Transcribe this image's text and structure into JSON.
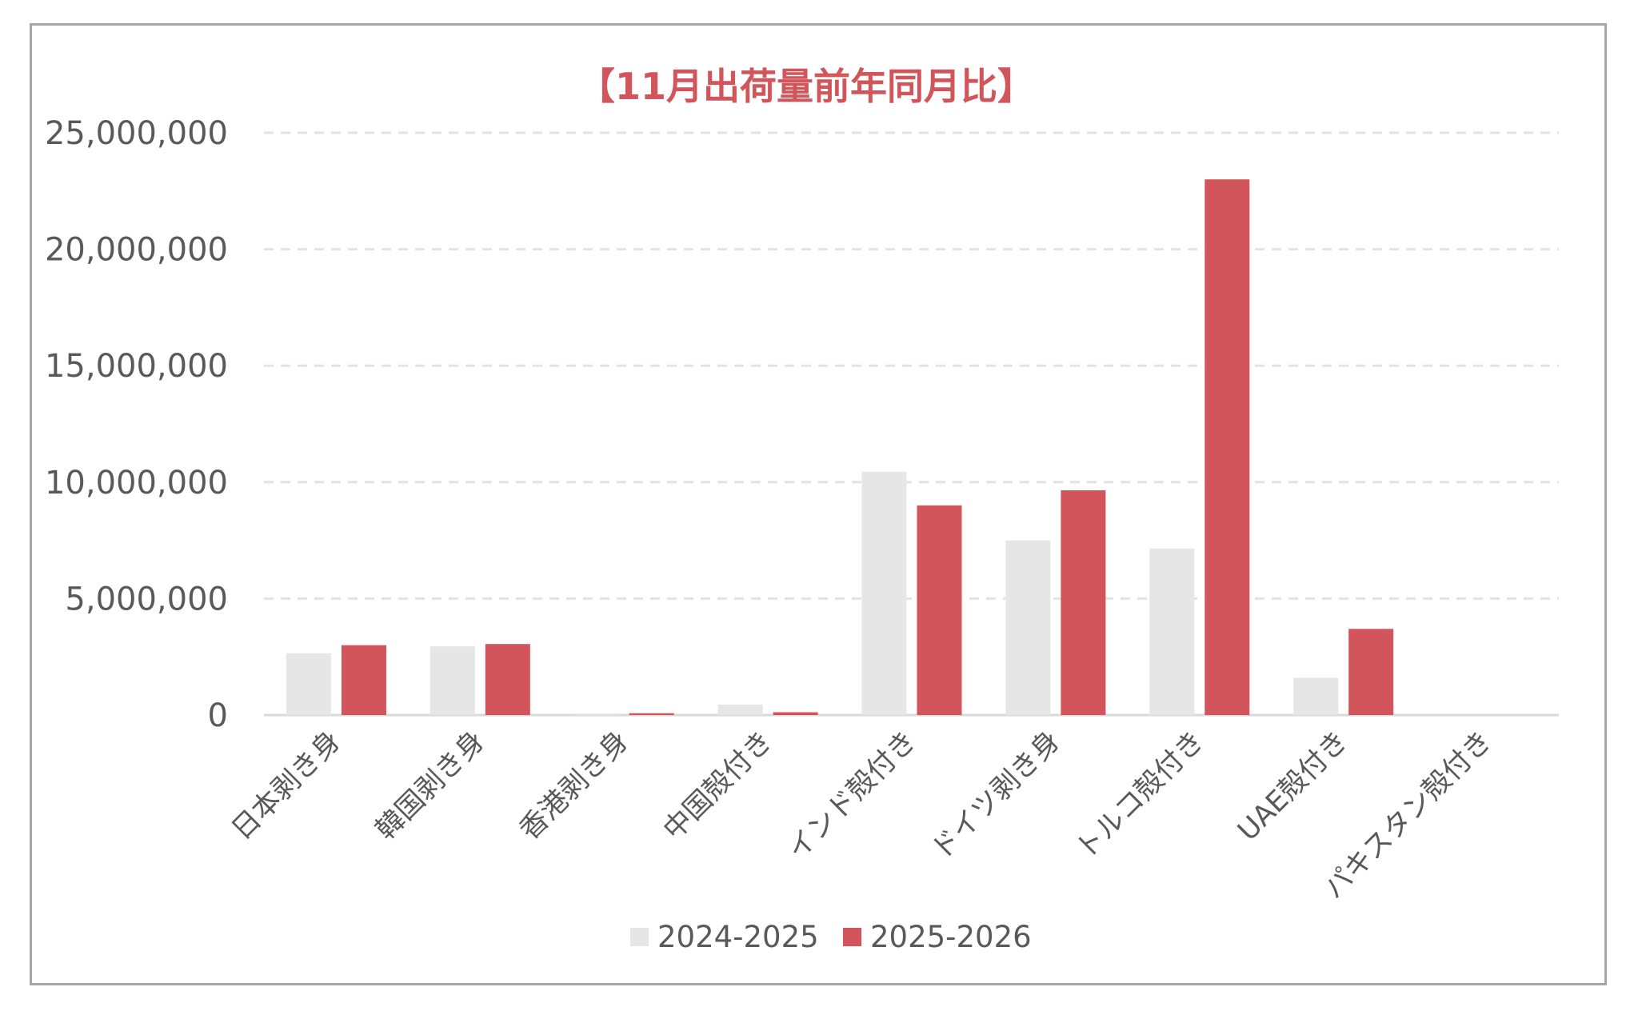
{
  "chart_data": {
    "type": "bar",
    "title": "【11月出荷量前年同月比】",
    "xlabel": "",
    "ylabel": "",
    "ylim": [
      0,
      25000000
    ],
    "yticks": [
      0,
      5000000,
      10000000,
      15000000,
      20000000,
      25000000
    ],
    "ytick_labels": [
      "0",
      "5,000,000",
      "10,000,000",
      "15,000,000",
      "20,000,000",
      "25,000,000"
    ],
    "grid": true,
    "legend_position": "bottom",
    "categories": [
      "日本剥き身",
      "韓国剥き身",
      "香港剥き身",
      "中国殻付き",
      "インド殻付き",
      "ドイツ剥き身",
      "トルコ殻付き",
      "UAE殻付き",
      "パキスタン殻付き"
    ],
    "series": [
      {
        "name": "2024-2025",
        "color": "#e6e6e6",
        "values": [
          2650000,
          2950000,
          30000,
          450000,
          10450000,
          7500000,
          7150000,
          1600000,
          0
        ]
      },
      {
        "name": "2025-2026",
        "color": "#d1555a",
        "values": [
          3000000,
          3050000,
          80000,
          120000,
          9000000,
          9650000,
          23000000,
          3700000,
          0
        ]
      }
    ]
  }
}
